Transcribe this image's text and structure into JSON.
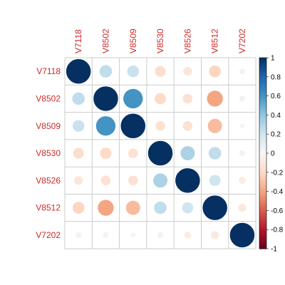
{
  "chart_data": {
    "type": "heatmap",
    "variables": [
      "V7118",
      "V8502",
      "V8509",
      "V8530",
      "V8526",
      "V8512",
      "V7202"
    ],
    "matrix": [
      [
        1.0,
        0.25,
        0.22,
        -0.18,
        -0.12,
        -0.22,
        -0.05
      ],
      [
        0.25,
        1.0,
        0.6,
        -0.2,
        -0.15,
        -0.4,
        0.05
      ],
      [
        0.22,
        0.6,
        1.0,
        -0.15,
        -0.15,
        -0.32,
        0.03
      ],
      [
        -0.18,
        -0.2,
        -0.15,
        1.0,
        0.32,
        0.25,
        -0.05
      ],
      [
        -0.12,
        -0.15,
        -0.15,
        0.32,
        1.0,
        0.2,
        -0.08
      ],
      [
        -0.22,
        -0.4,
        -0.32,
        0.25,
        0.2,
        1.0,
        -0.1
      ],
      [
        -0.05,
        0.05,
        0.03,
        -0.05,
        -0.08,
        -0.1,
        1.0
      ]
    ],
    "colorbar_ticks": [
      "1",
      "0.8",
      "0.6",
      "0.4",
      "0.2",
      "0",
      "-0.2",
      "-0.4",
      "-0.6",
      "-0.8",
      "-1"
    ],
    "value_range": [
      -1,
      1
    ],
    "colors": {
      "positive": "#053061",
      "neutral": "#f7f7f7",
      "negative": "#67001f",
      "label": "#cc2a2a",
      "grid": "#cccccc"
    }
  }
}
